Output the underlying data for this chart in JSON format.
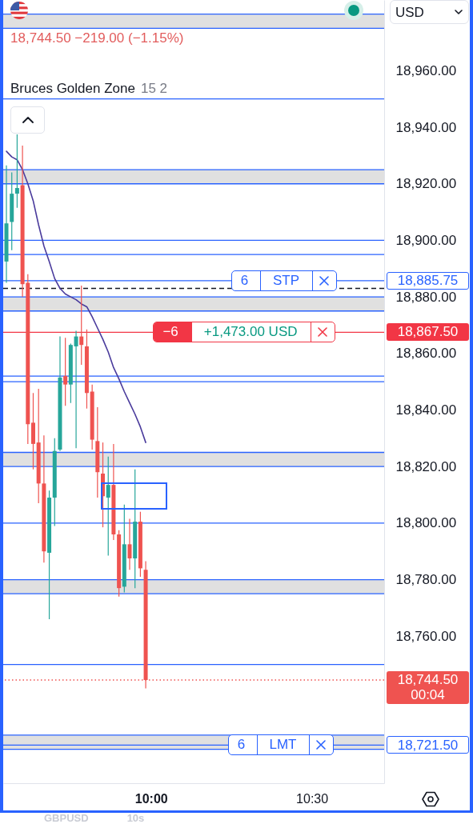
{
  "chart_data": {
    "type": "candlestick",
    "subtitle": "18,744.50 −219.00 (−1.15%)",
    "ylabel": "USD",
    "x": [
      9.55,
      9.5667,
      9.5833,
      9.6,
      9.6167,
      9.6333,
      9.65,
      9.6667,
      9.6833,
      9.7,
      9.7167,
      9.7333,
      9.75,
      9.7667,
      9.7833,
      9.8,
      9.8167,
      9.8333,
      9.85,
      9.8667,
      9.8833,
      9.9,
      9.9167,
      9.9333,
      9.95,
      9.9667,
      9.9833
    ],
    "ohlc": [
      [
        18892.5,
        18926.5,
        18885,
        18906
      ],
      [
        18906.5,
        18924,
        18896.5,
        18916.5
      ],
      [
        18916.5,
        18937.5,
        18911.5,
        18918.5
      ],
      [
        18919.5,
        18933.5,
        18880,
        18884.5
      ],
      [
        18885,
        18888,
        18828,
        18835
      ],
      [
        18835.5,
        18846,
        18819,
        18828
      ],
      [
        18828.5,
        18847.5,
        18807,
        18814
      ],
      [
        18814,
        18831,
        18786,
        18790
      ],
      [
        18789.5,
        18811.5,
        18766,
        18809
      ],
      [
        18809,
        18830,
        18799,
        18825.5
      ],
      [
        18826,
        18866,
        18825.5,
        18851.5
      ],
      [
        18852,
        18865.5,
        18841.5,
        18849
      ],
      [
        18849,
        18863.5,
        18842.5,
        18863
      ],
      [
        18862.5,
        18868,
        18826.5,
        18866
      ],
      [
        18866,
        18884,
        18856,
        18863
      ],
      [
        18862.5,
        18868.5,
        18840.5,
        18846
      ],
      [
        18846.5,
        18849,
        18826,
        18829.5
      ],
      [
        18829,
        18841,
        18809,
        18818
      ],
      [
        18817.5,
        18828.5,
        18798.5,
        18809.5
      ],
      [
        18809,
        18823.5,
        18788.5,
        18813.5
      ],
      [
        18813.5,
        18828,
        18794,
        18796
      ],
      [
        18796,
        18797.5,
        18774,
        18777
      ],
      [
        18777.5,
        18806.5,
        18775.5,
        18792.5
      ],
      [
        18792.5,
        18801.5,
        18783.5,
        18787.5
      ],
      [
        18787.5,
        18819,
        18777,
        18800.5
      ],
      [
        18800.5,
        18804,
        18781,
        18784
      ],
      [
        18783.5,
        18786.5,
        18741.5,
        18744.5
      ]
    ],
    "colors": [
      "#26a69a",
      "#26a69a",
      "#26a69a",
      "#ef5350",
      "#ef5350",
      "#ef5350",
      "#ef5350",
      "#ef5350",
      "#26a69a",
      "#26a69a",
      "#26a69a",
      "#ef5350",
      "#26a69a",
      "#26a69a",
      "#ef5350",
      "#ef5350",
      "#ef5350",
      "#ef5350",
      "#ef5350",
      "#26a69a",
      "#ef5350",
      "#ef5350",
      "#26a69a",
      "#ef5350",
      "#26a69a",
      "#ef5350",
      "#ef5350"
    ],
    "series": [
      {
        "type": "line",
        "color": "#4a3b9c",
        "values": [
          18931.5,
          18929.5,
          18928.5,
          18925,
          18920,
          18914,
          18905.5,
          18898,
          18892.5,
          18886.5,
          18883,
          18881,
          18880,
          18879,
          18877.5,
          18876.5,
          18873,
          18869,
          18865,
          18860.5,
          18855,
          18851,
          18846.5,
          18842.5,
          18838.5,
          18834,
          18828.5
        ]
      }
    ],
    "xlim": [
      9.54,
      10.725
    ],
    "xticks": [
      {
        "value": 10,
        "label": "10:00"
      },
      {
        "value": 10.5,
        "label": "10:30"
      }
    ],
    "ylim": [
      18708,
      18985
    ],
    "yticks": [
      {
        "value": 18760,
        "label": "18,760.00"
      },
      {
        "value": 18780,
        "label": "18,780.00"
      },
      {
        "value": 18800,
        "label": "18,800.00"
      },
      {
        "value": 18820,
        "label": "18,820.00"
      },
      {
        "value": 18840,
        "label": "18,840.00"
      },
      {
        "value": 18860,
        "label": "18,860.00"
      },
      {
        "value": 18880,
        "label": "18,880.00"
      },
      {
        "value": 18900,
        "label": "18,900.00"
      },
      {
        "value": 18920,
        "label": "18,920.00"
      },
      {
        "value": 18940,
        "label": "18,940.00"
      },
      {
        "value": 18960,
        "label": "18,960.00"
      }
    ],
    "grid": false,
    "bands": [
      {
        "axis": "y",
        "from": 18975,
        "to": 18980,
        "color": "#e0e0e0"
      },
      {
        "axis": "y",
        "from": 18920,
        "to": 18925,
        "color": "#e0e0e0"
      },
      {
        "axis": "y",
        "from": 18875,
        "to": 18880,
        "color": "#e0e0e0"
      },
      {
        "axis": "y",
        "from": 18820,
        "to": 18825,
        "color": "#e0e0e0"
      },
      {
        "axis": "y",
        "from": 18775,
        "to": 18780,
        "color": "#e0e0e0"
      },
      {
        "axis": "y",
        "from": 18720,
        "to": 18725,
        "color": "#e0e0e0"
      }
    ],
    "ref_lines": [
      {
        "axis": "y",
        "value": 18980,
        "color": "#2962ff"
      },
      {
        "axis": "y",
        "value": 18975,
        "color": "#2962ff"
      },
      {
        "axis": "y",
        "value": 18950,
        "color": "#2962ff"
      },
      {
        "axis": "y",
        "value": 18925,
        "color": "#2962ff"
      },
      {
        "axis": "y",
        "value": 18920,
        "color": "#2962ff"
      },
      {
        "axis": "y",
        "value": 18900,
        "color": "#2962ff"
      },
      {
        "axis": "y",
        "value": 18895,
        "color": "#2962ff"
      },
      {
        "axis": "y",
        "value": 18880,
        "color": "#2962ff"
      },
      {
        "axis": "y",
        "value": 18875,
        "color": "#2962ff"
      },
      {
        "axis": "y",
        "value": 18852,
        "color": "#2962ff"
      },
      {
        "axis": "y",
        "value": 18850,
        "color": "#2962ff"
      },
      {
        "axis": "y",
        "value": 18825,
        "color": "#2962ff"
      },
      {
        "axis": "y",
        "value": 18820,
        "color": "#2962ff"
      },
      {
        "axis": "y",
        "value": 18800,
        "color": "#2962ff"
      },
      {
        "axis": "y",
        "value": 18780,
        "color": "#2962ff"
      },
      {
        "axis": "y",
        "value": 18775,
        "color": "#2962ff"
      },
      {
        "axis": "y",
        "value": 18750,
        "color": "#2962ff"
      },
      {
        "axis": "y",
        "value": 18725,
        "color": "#2962ff"
      },
      {
        "axis": "y",
        "value": 18720,
        "color": "#2962ff"
      },
      {
        "axis": "y",
        "value": 18883,
        "color": "#131722",
        "line_style": "dashed"
      },
      {
        "axis": "y",
        "value": 18885.75,
        "label": "18,885.75",
        "color": "#2962ff"
      },
      {
        "axis": "y",
        "value": 18867.5,
        "label": "18,867.50",
        "color": "#f23645"
      },
      {
        "axis": "y",
        "value": 18744.5,
        "label": "18,744.50",
        "color": "#ef5350",
        "line_style": "dotted"
      },
      {
        "axis": "y",
        "value": 18721.5,
        "label": "18,721.50",
        "color": "#2962ff"
      }
    ],
    "annotations": [
      "Bruces Golden Zone",
      "15 2",
      {
        "text": "6",
        "x": 10.29,
        "y": 18885.75
      },
      {
        "text": "STP",
        "x": 10.42,
        "y": 18885.75
      },
      {
        "text": "−6",
        "x": 10.06,
        "y": 18867.5
      },
      {
        "text": "+1,473.00 USD",
        "x": 10.31,
        "y": 18867.5
      },
      {
        "text": "6",
        "x": 10.28,
        "y": 18721.5
      },
      {
        "text": "LMT",
        "x": 10.41,
        "y": 18721.5
      },
      "00:04",
      "GBPUSD",
      "10s"
    ]
  }
}
